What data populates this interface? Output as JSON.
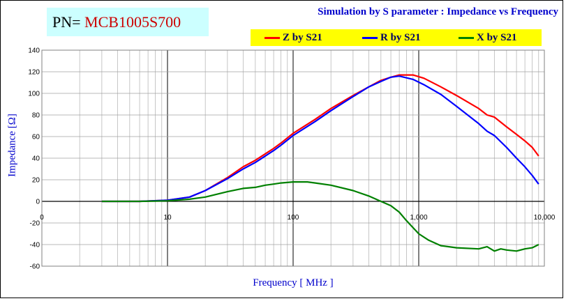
{
  "header": {
    "pn_label": "PN= ",
    "pn_value": "MCB1005S700",
    "title": "Simulation by S parameter : Impedance vs Frequency"
  },
  "colors": {
    "z": "#ff0000",
    "r": "#0000ff",
    "x": "#008000",
    "legend_bg": "#ffff00",
    "pn_bg": "#ccffff",
    "title": "#0000cc"
  },
  "chart_data": {
    "type": "line",
    "title": "Simulation by S parameter : Impedance vs Frequency",
    "xlabel": "Frequency [ MHz ]",
    "ylabel": "Impedance [Ω]",
    "xscale": "log",
    "xlim": [
      1,
      10000
    ],
    "ylim": [
      -60,
      140
    ],
    "x_tick_labels": [
      "0",
      "10",
      "100",
      "1,000",
      "10,000"
    ],
    "y_ticks": [
      -60,
      -40,
      -20,
      0,
      20,
      40,
      60,
      80,
      100,
      120,
      140
    ],
    "grid": true,
    "legend_position": "top-right",
    "series": [
      {
        "name": "Z by S21",
        "color": "#ff0000",
        "points": [
          [
            3,
            0
          ],
          [
            6,
            0
          ],
          [
            10,
            1
          ],
          [
            15,
            4
          ],
          [
            20,
            10
          ],
          [
            30,
            22
          ],
          [
            40,
            32
          ],
          [
            50,
            38
          ],
          [
            60,
            44
          ],
          [
            70,
            49
          ],
          [
            80,
            54
          ],
          [
            100,
            63
          ],
          [
            150,
            76
          ],
          [
            200,
            86
          ],
          [
            300,
            98
          ],
          [
            400,
            106
          ],
          [
            500,
            112
          ],
          [
            600,
            115
          ],
          [
            700,
            117
          ],
          [
            900,
            117
          ],
          [
            1100,
            114
          ],
          [
            1500,
            106
          ],
          [
            2000,
            98
          ],
          [
            3000,
            86
          ],
          [
            3500,
            80
          ],
          [
            4000,
            78
          ],
          [
            5000,
            69
          ],
          [
            6000,
            62
          ],
          [
            7000,
            56
          ],
          [
            8000,
            50
          ],
          [
            9000,
            42
          ]
        ]
      },
      {
        "name": "R by S21",
        "color": "#0000ff",
        "points": [
          [
            3,
            0
          ],
          [
            6,
            0
          ],
          [
            10,
            1
          ],
          [
            15,
            4
          ],
          [
            20,
            10
          ],
          [
            30,
            21
          ],
          [
            40,
            30
          ],
          [
            50,
            36
          ],
          [
            60,
            42
          ],
          [
            70,
            47
          ],
          [
            80,
            52
          ],
          [
            100,
            61
          ],
          [
            150,
            74
          ],
          [
            200,
            84
          ],
          [
            300,
            97
          ],
          [
            400,
            106
          ],
          [
            500,
            111
          ],
          [
            600,
            115
          ],
          [
            700,
            116
          ],
          [
            900,
            113
          ],
          [
            1100,
            108
          ],
          [
            1500,
            99
          ],
          [
            2000,
            88
          ],
          [
            3000,
            72
          ],
          [
            3500,
            65
          ],
          [
            4000,
            61
          ],
          [
            5000,
            50
          ],
          [
            6000,
            40
          ],
          [
            7000,
            32
          ],
          [
            8000,
            24
          ],
          [
            9000,
            16
          ]
        ]
      },
      {
        "name": "X by S21",
        "color": "#008000",
        "points": [
          [
            3,
            0
          ],
          [
            6,
            0
          ],
          [
            10,
            0.5
          ],
          [
            15,
            2
          ],
          [
            20,
            4
          ],
          [
            30,
            9
          ],
          [
            40,
            12
          ],
          [
            50,
            13
          ],
          [
            60,
            15
          ],
          [
            70,
            16
          ],
          [
            80,
            17
          ],
          [
            100,
            18
          ],
          [
            130,
            18
          ],
          [
            150,
            17
          ],
          [
            200,
            15
          ],
          [
            300,
            10
          ],
          [
            400,
            5
          ],
          [
            500,
            0
          ],
          [
            600,
            -4
          ],
          [
            700,
            -10
          ],
          [
            800,
            -18
          ],
          [
            1000,
            -30
          ],
          [
            1200,
            -36
          ],
          [
            1500,
            -41
          ],
          [
            2000,
            -43
          ],
          [
            3000,
            -44
          ],
          [
            3500,
            -42
          ],
          [
            4000,
            -46
          ],
          [
            4500,
            -44
          ],
          [
            5000,
            -45
          ],
          [
            6000,
            -46
          ],
          [
            7000,
            -44
          ],
          [
            8000,
            -43
          ],
          [
            9000,
            -40
          ]
        ]
      }
    ]
  }
}
